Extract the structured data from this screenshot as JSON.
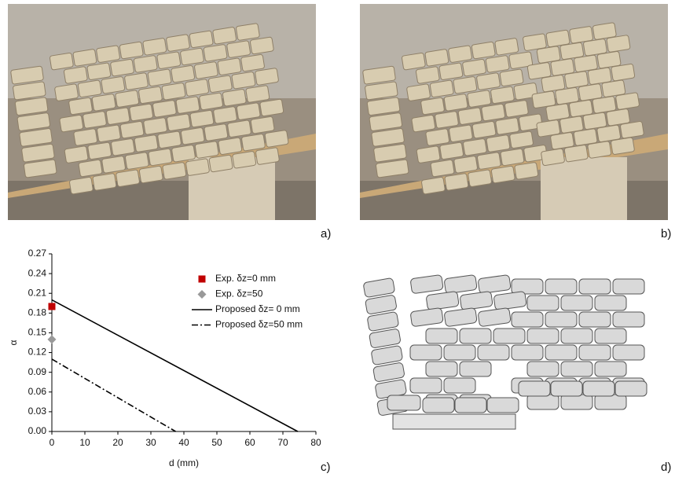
{
  "panels": {
    "a": "a)",
    "b": "b)",
    "c": "c)",
    "d": "d)"
  },
  "chart_data": {
    "type": "line",
    "xlabel": "d (mm)",
    "ylabel": "α",
    "xlim": [
      0,
      80
    ],
    "xticks": [
      0,
      10,
      20,
      30,
      40,
      50,
      60,
      70,
      80
    ],
    "ylim": [
      0,
      0.27
    ],
    "yticks": [
      {
        "value": 0,
        "label": "0.00"
      },
      {
        "value": 0.03,
        "label": "0.03"
      },
      {
        "value": 0.06,
        "label": "0.06"
      },
      {
        "value": 0.09,
        "label": "0.09"
      },
      {
        "value": 0.12,
        "label": "0.12"
      },
      {
        "value": 0.15,
        "label": "0.15"
      },
      {
        "value": 0.18,
        "label": "0.18"
      },
      {
        "value": 0.21,
        "label": "0.21"
      },
      {
        "value": 0.24,
        "label": "0.24"
      },
      {
        "value": 0.27,
        "label": "0.27"
      }
    ],
    "legend": "upper right",
    "series": [
      {
        "name": "Exp. δz=0 mm",
        "kind": "scatter",
        "marker": "square",
        "color": "#c00000",
        "x": [
          0
        ],
        "values": [
          0.19
        ]
      },
      {
        "name": "Exp. δz=50",
        "kind": "scatter",
        "marker": "diamond",
        "color": "#999999",
        "x": [
          0
        ],
        "values": [
          0.14
        ]
      },
      {
        "name": "Proposed δz= 0 mm",
        "kind": "line",
        "dash": "solid",
        "color": "#000000",
        "x": [
          0,
          74.5
        ],
        "values": [
          0.2,
          0
        ]
      },
      {
        "name": "Proposed δz=50 mm",
        "kind": "line",
        "dash": "dashdot",
        "color": "#000000",
        "x": [
          0,
          37.5
        ],
        "values": [
          0.11,
          0
        ]
      }
    ]
  }
}
